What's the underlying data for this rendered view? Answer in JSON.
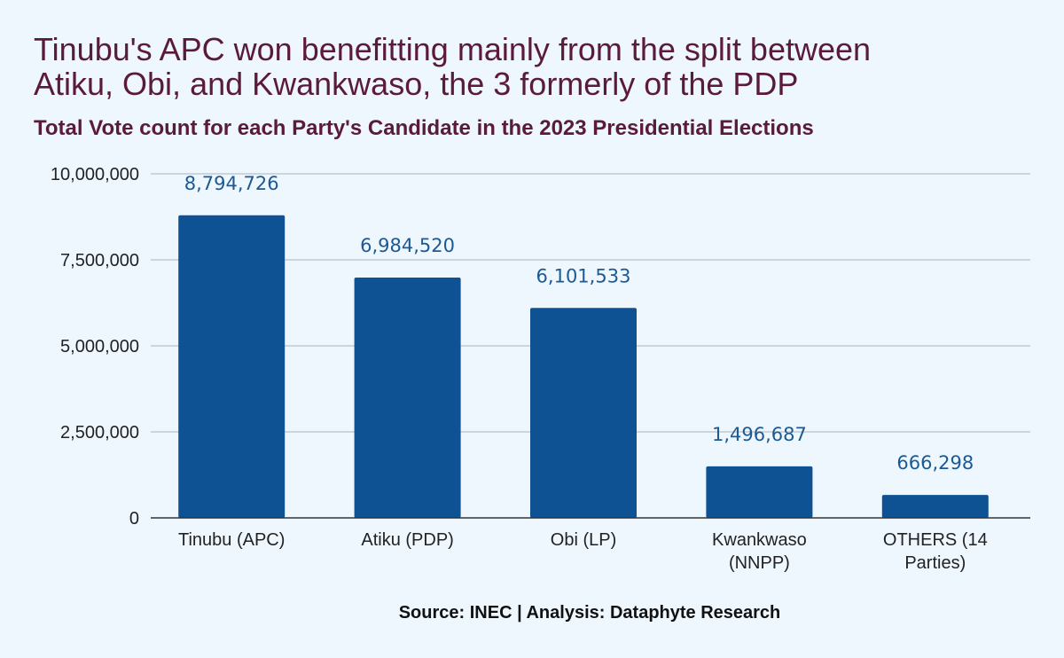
{
  "header": {
    "title_line1": "Tinubu's APC won benefitting mainly from the split between",
    "title_line2": "Atiku, Obi, and Kwankwaso, the 3 formerly of the PDP",
    "subtitle": "Total Vote count for each Party's Candidate in the 2023 Presidential Elections"
  },
  "footer": {
    "source": "Source: INEC | Analysis: Dataphyte Research"
  },
  "chart_data": {
    "type": "bar",
    "title": "Total Vote count for each Party's Candidate in the 2023 Presidential Elections",
    "categories": [
      [
        "Tinubu (APC)"
      ],
      [
        "Atiku (PDP)"
      ],
      [
        "Obi (LP)"
      ],
      [
        "Kwankwaso",
        "(NNPP)"
      ],
      [
        "OTHERS (14",
        "Parties)"
      ]
    ],
    "values": [
      8794726,
      6984520,
      6101533,
      1496687,
      666298
    ],
    "data_labels": [
      "8,794,726",
      "6,984,520",
      "6,101,533",
      "1,496,687",
      "666,298"
    ],
    "ylim": [
      0,
      10000000
    ],
    "yticks": [
      0,
      2500000,
      5000000,
      7500000,
      10000000
    ],
    "ytick_labels": [
      "0",
      "2,500,000",
      "5,000,000",
      "7,500,000",
      "10,000,000"
    ],
    "xlabel": "",
    "ylabel": "",
    "grid": true,
    "bar_color": "#0f5294"
  }
}
